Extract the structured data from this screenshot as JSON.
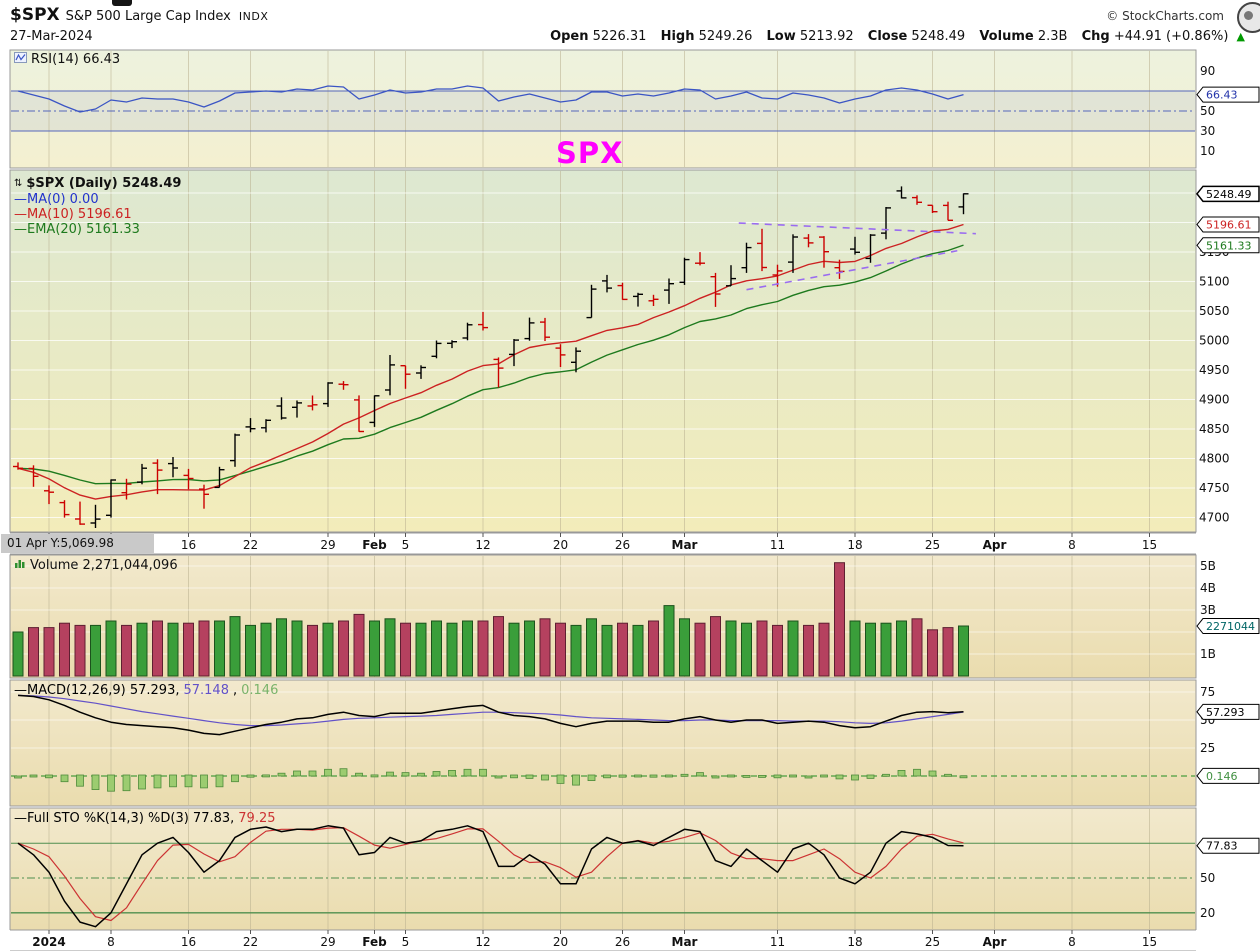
{
  "header": {
    "symbol": "$SPX",
    "name": "S&P 500 Large Cap Index",
    "exchange": "INDX",
    "date": "27-Mar-2024",
    "copyright": "© StockCharts.com",
    "quote": [
      {
        "label": "Open",
        "value": "5226.31"
      },
      {
        "label": "High",
        "value": "5249.26"
      },
      {
        "label": "Low",
        "value": "5213.92"
      },
      {
        "label": "Close",
        "value": "5248.49"
      },
      {
        "label": "Volume",
        "value": "2.3B"
      },
      {
        "label": "Chg",
        "value": "+44.91 (+0.86%)"
      }
    ],
    "chg_arrow": "▲"
  },
  "status": {
    "readout": "01 Apr  Y:5,069.98"
  },
  "legend": {
    "rsi": "RSI(14) 66.43",
    "price_main": "$SPX (Daily) 5248.49",
    "ma0": "—MA(0) 0.00",
    "ma10": "—MA(10) 5196.61",
    "ema20": "—EMA(20) 5161.33",
    "volume": "Volume 2,271,044,096",
    "macd_parts": [
      {
        "text": "—MACD(12,26,9) 57.293, ",
        "color": "#000000"
      },
      {
        "text": "57.148",
        "color": "#6352c8"
      },
      {
        "text": ", ",
        "color": "#000000"
      },
      {
        "text": "0.146",
        "color": "#7ab36a"
      }
    ],
    "sto_parts": [
      {
        "text": "—Full STO %K(14,3) %D(3) 77.83,",
        "color": "#000000"
      },
      {
        "text": " 79.25",
        "color": "#cc3333"
      }
    ]
  },
  "colors": {
    "up": "#000000",
    "down": "#cc0000",
    "ma0": "#2233cc",
    "ma10": "#cc2222",
    "ema20": "#1e7a1e",
    "rsi_line": "#3b55c4",
    "rsi_level": "#5566bb",
    "macd_line": "#000000",
    "signal_line": "#6352c8",
    "hist": "#9ccc70",
    "hist_edge": "#4e8a3a",
    "zero_line": "#4a9e3f",
    "volume_up": "#3a9e3a",
    "volume_down": "#b5415f",
    "volume_up_edge": "#1c521c",
    "volume_down_edge": "#5e1f31",
    "k_line": "#000000",
    "d_line": "#cc3333",
    "sto_level": "#4f8f4f",
    "annotation": "#ff00ff",
    "trendline": "#9a6cf0",
    "badge_rsi": "#2233aa",
    "badge_close": "#000000",
    "badge_ma10": "#cc2222",
    "badge_ema20": "#1e7a1e",
    "badge_volume": "#006666",
    "badge_macd": "#000000",
    "badge_hist": "#3f8f3f",
    "badge_sto": "#000000",
    "up_arrow": "#009900"
  },
  "chart_data": {
    "type": "ohlc-multi-panel",
    "dates": [
      "Dec 28",
      "Dec 29",
      "Jan 2",
      "Jan 3",
      "Jan 4",
      "Jan 5",
      "Jan 8",
      "Jan 9",
      "Jan 10",
      "Jan 11",
      "Jan 12",
      "Jan 16",
      "Jan 17",
      "Jan 18",
      "Jan 19",
      "Jan 22",
      "Jan 23",
      "Jan 24",
      "Jan 25",
      "Jan 26",
      "Jan 29",
      "Jan 30",
      "Jan 31",
      "Feb 1",
      "Feb 2",
      "Feb 5",
      "Feb 6",
      "Feb 7",
      "Feb 8",
      "Feb 9",
      "Feb 12",
      "Feb 13",
      "Feb 14",
      "Feb 15",
      "Feb 16",
      "Feb 20",
      "Feb 21",
      "Feb 22",
      "Feb 23",
      "Feb 26",
      "Feb 27",
      "Feb 28",
      "Feb 29",
      "Mar 1",
      "Mar 4",
      "Mar 5",
      "Mar 6",
      "Mar 7",
      "Mar 8",
      "Mar 11",
      "Mar 12",
      "Mar 13",
      "Mar 14",
      "Mar 15",
      "Mar 18",
      "Mar 19",
      "Mar 20",
      "Mar 21",
      "Mar 22",
      "Mar 25",
      "Mar 26",
      "Mar 27"
    ],
    "total_slots": 74,
    "x_ticks": [
      {
        "slot": 2,
        "label": "2024",
        "bold": true
      },
      {
        "slot": 6,
        "label": "8"
      },
      {
        "slot": 11,
        "label": "16"
      },
      {
        "slot": 15,
        "label": "22"
      },
      {
        "slot": 20,
        "label": "29"
      },
      {
        "slot": 23,
        "label": "Feb",
        "bold": true
      },
      {
        "slot": 25,
        "label": "5"
      },
      {
        "slot": 30,
        "label": "12"
      },
      {
        "slot": 35,
        "label": "20"
      },
      {
        "slot": 39,
        "label": "26"
      },
      {
        "slot": 43,
        "label": "Mar",
        "bold": true
      },
      {
        "slot": 49,
        "label": "11"
      },
      {
        "slot": 54,
        "label": "18"
      },
      {
        "slot": 59,
        "label": "25"
      },
      {
        "slot": 63,
        "label": "Apr",
        "bold": true
      },
      {
        "slot": 68,
        "label": "8"
      },
      {
        "slot": 73,
        "label": "15"
      }
    ],
    "rsi": {
      "values": [
        70,
        66,
        62,
        55,
        49,
        52,
        61,
        59,
        63,
        62,
        62,
        59,
        54,
        60,
        68,
        69,
        70,
        69,
        72,
        71,
        75,
        74,
        62,
        66,
        71,
        68,
        69,
        72,
        72,
        75,
        73,
        60,
        64,
        67,
        63,
        59,
        61,
        69,
        69,
        65,
        67,
        65,
        68,
        72,
        71,
        62,
        65,
        69,
        63,
        62,
        68,
        66,
        63,
        58,
        62,
        65,
        71,
        73,
        71,
        67,
        62,
        66.43
      ],
      "levels": {
        "upper": 70,
        "mid": 50,
        "lower": 30
      },
      "ylim": [
        0,
        100
      ],
      "yticks": [
        90,
        50,
        30,
        10
      ],
      "badge": {
        "text": "66.43",
        "v": 66.43
      }
    },
    "price": {
      "open": [
        4786.4,
        4782.9,
        4745.2,
        4725.1,
        4697.4,
        4690.6,
        4703.7,
        4741.9,
        4759.9,
        4792.1,
        4791.2,
        4771.3,
        4748.0,
        4750.9,
        4796.3,
        4853.4,
        4851.9,
        4888.9,
        4886.7,
        4888.9,
        4892.9,
        4925.9,
        4899.2,
        4861.1,
        4916.1,
        4957.2,
        4944.9,
        4973.1,
        4995.2,
        5004.2,
        5026.8,
        4967.9,
        4976.4,
        5003.1,
        5031.1,
        4987.0,
        4963.0,
        5038.8,
        5100.9,
        5093.0,
        5074.6,
        5067.2,
        5085.4,
        5098.5,
        5131.0,
        5108.0,
        5092.6,
        5123.3,
        5164.5,
        5111.0,
        5132.8,
        5173.5,
        5175.1,
        5123.3,
        5154.8,
        5139.1,
        5181.9,
        5253.4,
        5242.2,
        5229.1,
        5228.9,
        5226.31
      ],
      "high": [
        4793.3,
        4788.4,
        4754.3,
        4729.3,
        4726.8,
        4721.5,
        4764.5,
        4765.5,
        4790.8,
        4798.5,
        4802.4,
        4782.3,
        4755.5,
        4785.8,
        4842.1,
        4868.4,
        4866.5,
        4903.7,
        4898.2,
        4906.7,
        4929.3,
        4931.1,
        4906.8,
        4906.9,
        4975.3,
        4957.2,
        4957.8,
        4999.9,
        5000.4,
        5030.1,
        5048.4,
        4971.3,
        5002.5,
        5038.7,
        5038.2,
        4993.7,
        4988.3,
        5094.4,
        5111.1,
        5097.7,
        5080.7,
        5077.4,
        5104.99,
        5140.3,
        5149.7,
        5114.5,
        5127.5,
        5165.6,
        5189.3,
        5128.4,
        5179.9,
        5180.3,
        5176.9,
        5136.9,
        5175.6,
        5180.3,
        5226.2,
        5261.1,
        5246.1,
        5229.1,
        5235.2,
        5249.26
      ],
      "low": [
        4781.0,
        4752.0,
        4722.7,
        4699.7,
        4687.5,
        4682.1,
        4699.8,
        4730.4,
        4756.2,
        4739.6,
        4768.0,
        4747.7,
        4714.8,
        4750.9,
        4785.9,
        4844.4,
        4844.1,
        4865.9,
        4869.3,
        4881.5,
        4887.4,
        4916.3,
        4845.2,
        4853.5,
        4907.1,
        4918.1,
        4934.9,
        4969.8,
        4987.1,
        5000.3,
        5016.8,
        4920.3,
        4956.5,
        4999.5,
        4999.0,
        4955.0,
        4946.0,
        5038.8,
        5081.5,
        5068.9,
        5057.3,
        5058.4,
        5061.9,
        5094.2,
        5127.2,
        5056.8,
        5092.4,
        5114.5,
        5117.5,
        5091.1,
        5114.5,
        5157.9,
        5123.3,
        5104.4,
        5145.5,
        5131.6,
        5171.5,
        5240.6,
        5229.9,
        5216.0,
        5203.4,
        5213.92
      ],
      "close": [
        4783.35,
        4769.83,
        4742.83,
        4704.81,
        4688.68,
        4697.24,
        4763.54,
        4756.5,
        4783.45,
        4780.24,
        4783.83,
        4765.98,
        4739.21,
        4780.94,
        4839.81,
        4850.43,
        4864.6,
        4868.55,
        4894.16,
        4890.97,
        4927.93,
        4924.97,
        4845.65,
        4906.19,
        4958.61,
        4942.81,
        4954.23,
        4995.06,
        4997.91,
        5026.61,
        5021.84,
        4953.17,
        5000.62,
        5029.73,
        5005.57,
        4975.51,
        4981.8,
        5087.03,
        5088.8,
        5069.53,
        5078.18,
        5069.76,
        5096.27,
        5137.08,
        5130.95,
        5078.65,
        5104.76,
        5157.36,
        5123.69,
        5117.94,
        5175.27,
        5165.31,
        5150.48,
        5117.09,
        5149.42,
        5178.51,
        5224.62,
        5241.53,
        5234.18,
        5218.19,
        5203.58,
        5248.49
      ],
      "ylim": [
        4680,
        5290
      ],
      "yticks": [
        5150,
        5100,
        5050,
        5000,
        4950,
        4900,
        4850,
        4800,
        4750,
        4700
      ],
      "badges": [
        {
          "text": "5248.49",
          "v": 5248.49,
          "color": "#000000",
          "strong": true
        },
        {
          "text": "5196.61",
          "v": 5196.61,
          "color": "#cc2222"
        },
        {
          "text": "5161.33",
          "v": 5161.33,
          "color": "#1e7a1e"
        }
      ],
      "trendlines": [
        {
          "s1": 46.5,
          "p1": 5199,
          "s2": 61.8,
          "p2": 5181
        },
        {
          "s1": 47,
          "p1": 5086,
          "s2": 60.6,
          "p2": 5152
        }
      ],
      "annotation": {
        "text": "SPX"
      }
    },
    "volume": {
      "billions": [
        2.0,
        2.2,
        2.2,
        2.4,
        2.3,
        2.3,
        2.5,
        2.3,
        2.4,
        2.5,
        2.4,
        2.4,
        2.5,
        2.5,
        2.7,
        2.3,
        2.4,
        2.6,
        2.5,
        2.3,
        2.4,
        2.5,
        2.8,
        2.5,
        2.6,
        2.4,
        2.4,
        2.5,
        2.4,
        2.5,
        2.5,
        2.7,
        2.4,
        2.5,
        2.6,
        2.4,
        2.3,
        2.6,
        2.3,
        2.4,
        2.3,
        2.5,
        3.2,
        2.6,
        2.4,
        2.7,
        2.5,
        2.4,
        2.5,
        2.3,
        2.5,
        2.3,
        2.4,
        5.15,
        2.5,
        2.4,
        2.4,
        2.5,
        2.6,
        2.1,
        2.2,
        2.271
      ],
      "ylim_billions": [
        0,
        5.5
      ],
      "yticks": [
        {
          "v": 5,
          "label": "5B"
        },
        {
          "v": 4,
          "label": "4B"
        },
        {
          "v": 3,
          "label": "3B"
        },
        {
          "v": 1,
          "label": "1B"
        }
      ],
      "badge": {
        "text": "2271044",
        "v": 2.271
      }
    },
    "macd": {
      "macd": [
        72,
        71,
        68,
        63,
        57,
        52,
        48,
        46,
        45,
        44,
        43,
        41,
        38,
        37,
        40,
        43,
        46,
        48,
        51,
        52,
        55,
        57,
        54,
        53,
        56,
        56,
        56,
        58,
        60,
        62,
        63,
        57,
        54,
        53,
        51,
        47,
        44,
        47,
        49,
        49,
        49,
        48,
        48,
        51,
        53,
        50,
        48,
        50,
        50,
        47,
        48,
        49,
        48,
        45,
        43,
        44,
        49,
        54,
        57,
        57.5,
        56.5,
        57.293
      ],
      "signal": [
        72,
        71.5,
        70.5,
        69,
        67,
        65,
        62.5,
        60,
        57.5,
        55.5,
        53.5,
        51.5,
        49.5,
        47.5,
        46,
        45,
        45,
        45.5,
        46.5,
        47.5,
        49,
        50.5,
        51.5,
        52,
        52.5,
        53,
        53.5,
        54,
        55,
        56,
        57,
        57,
        56.5,
        56,
        55.5,
        54.5,
        53,
        52,
        51.5,
        51,
        50.5,
        50,
        49.5,
        49.5,
        50,
        50,
        49.5,
        49.5,
        49.5,
        49.5,
        49,
        49,
        49,
        48.5,
        47.5,
        47,
        47.5,
        49,
        51,
        53,
        55,
        57.148
      ],
      "yticks": [
        75,
        50,
        25
      ],
      "zero": 0,
      "badges": [
        {
          "text": "57.293",
          "v": 57.293,
          "color": "#000000"
        },
        {
          "text": "0.146",
          "v": 0.146,
          "color": "#3f8f3f"
        }
      ]
    },
    "sto": {
      "k": [
        80,
        70,
        55,
        30,
        12,
        8,
        20,
        45,
        70,
        80,
        85,
        72,
        55,
        65,
        85,
        92,
        94,
        90,
        92,
        92,
        95,
        93,
        70,
        72,
        85,
        80,
        82,
        90,
        92,
        95,
        90,
        60,
        60,
        70,
        62,
        45,
        45,
        75,
        85,
        80,
        82,
        78,
        85,
        92,
        90,
        65,
        60,
        75,
        65,
        55,
        75,
        80,
        70,
        50,
        45,
        55,
        80,
        90,
        88,
        85,
        78,
        77.83
      ],
      "levels": [
        80,
        50,
        20
      ],
      "ylim": [
        0,
        100
      ],
      "yticks": [
        50,
        20
      ],
      "badge": {
        "text": "77.83",
        "v": 77.83
      }
    }
  }
}
